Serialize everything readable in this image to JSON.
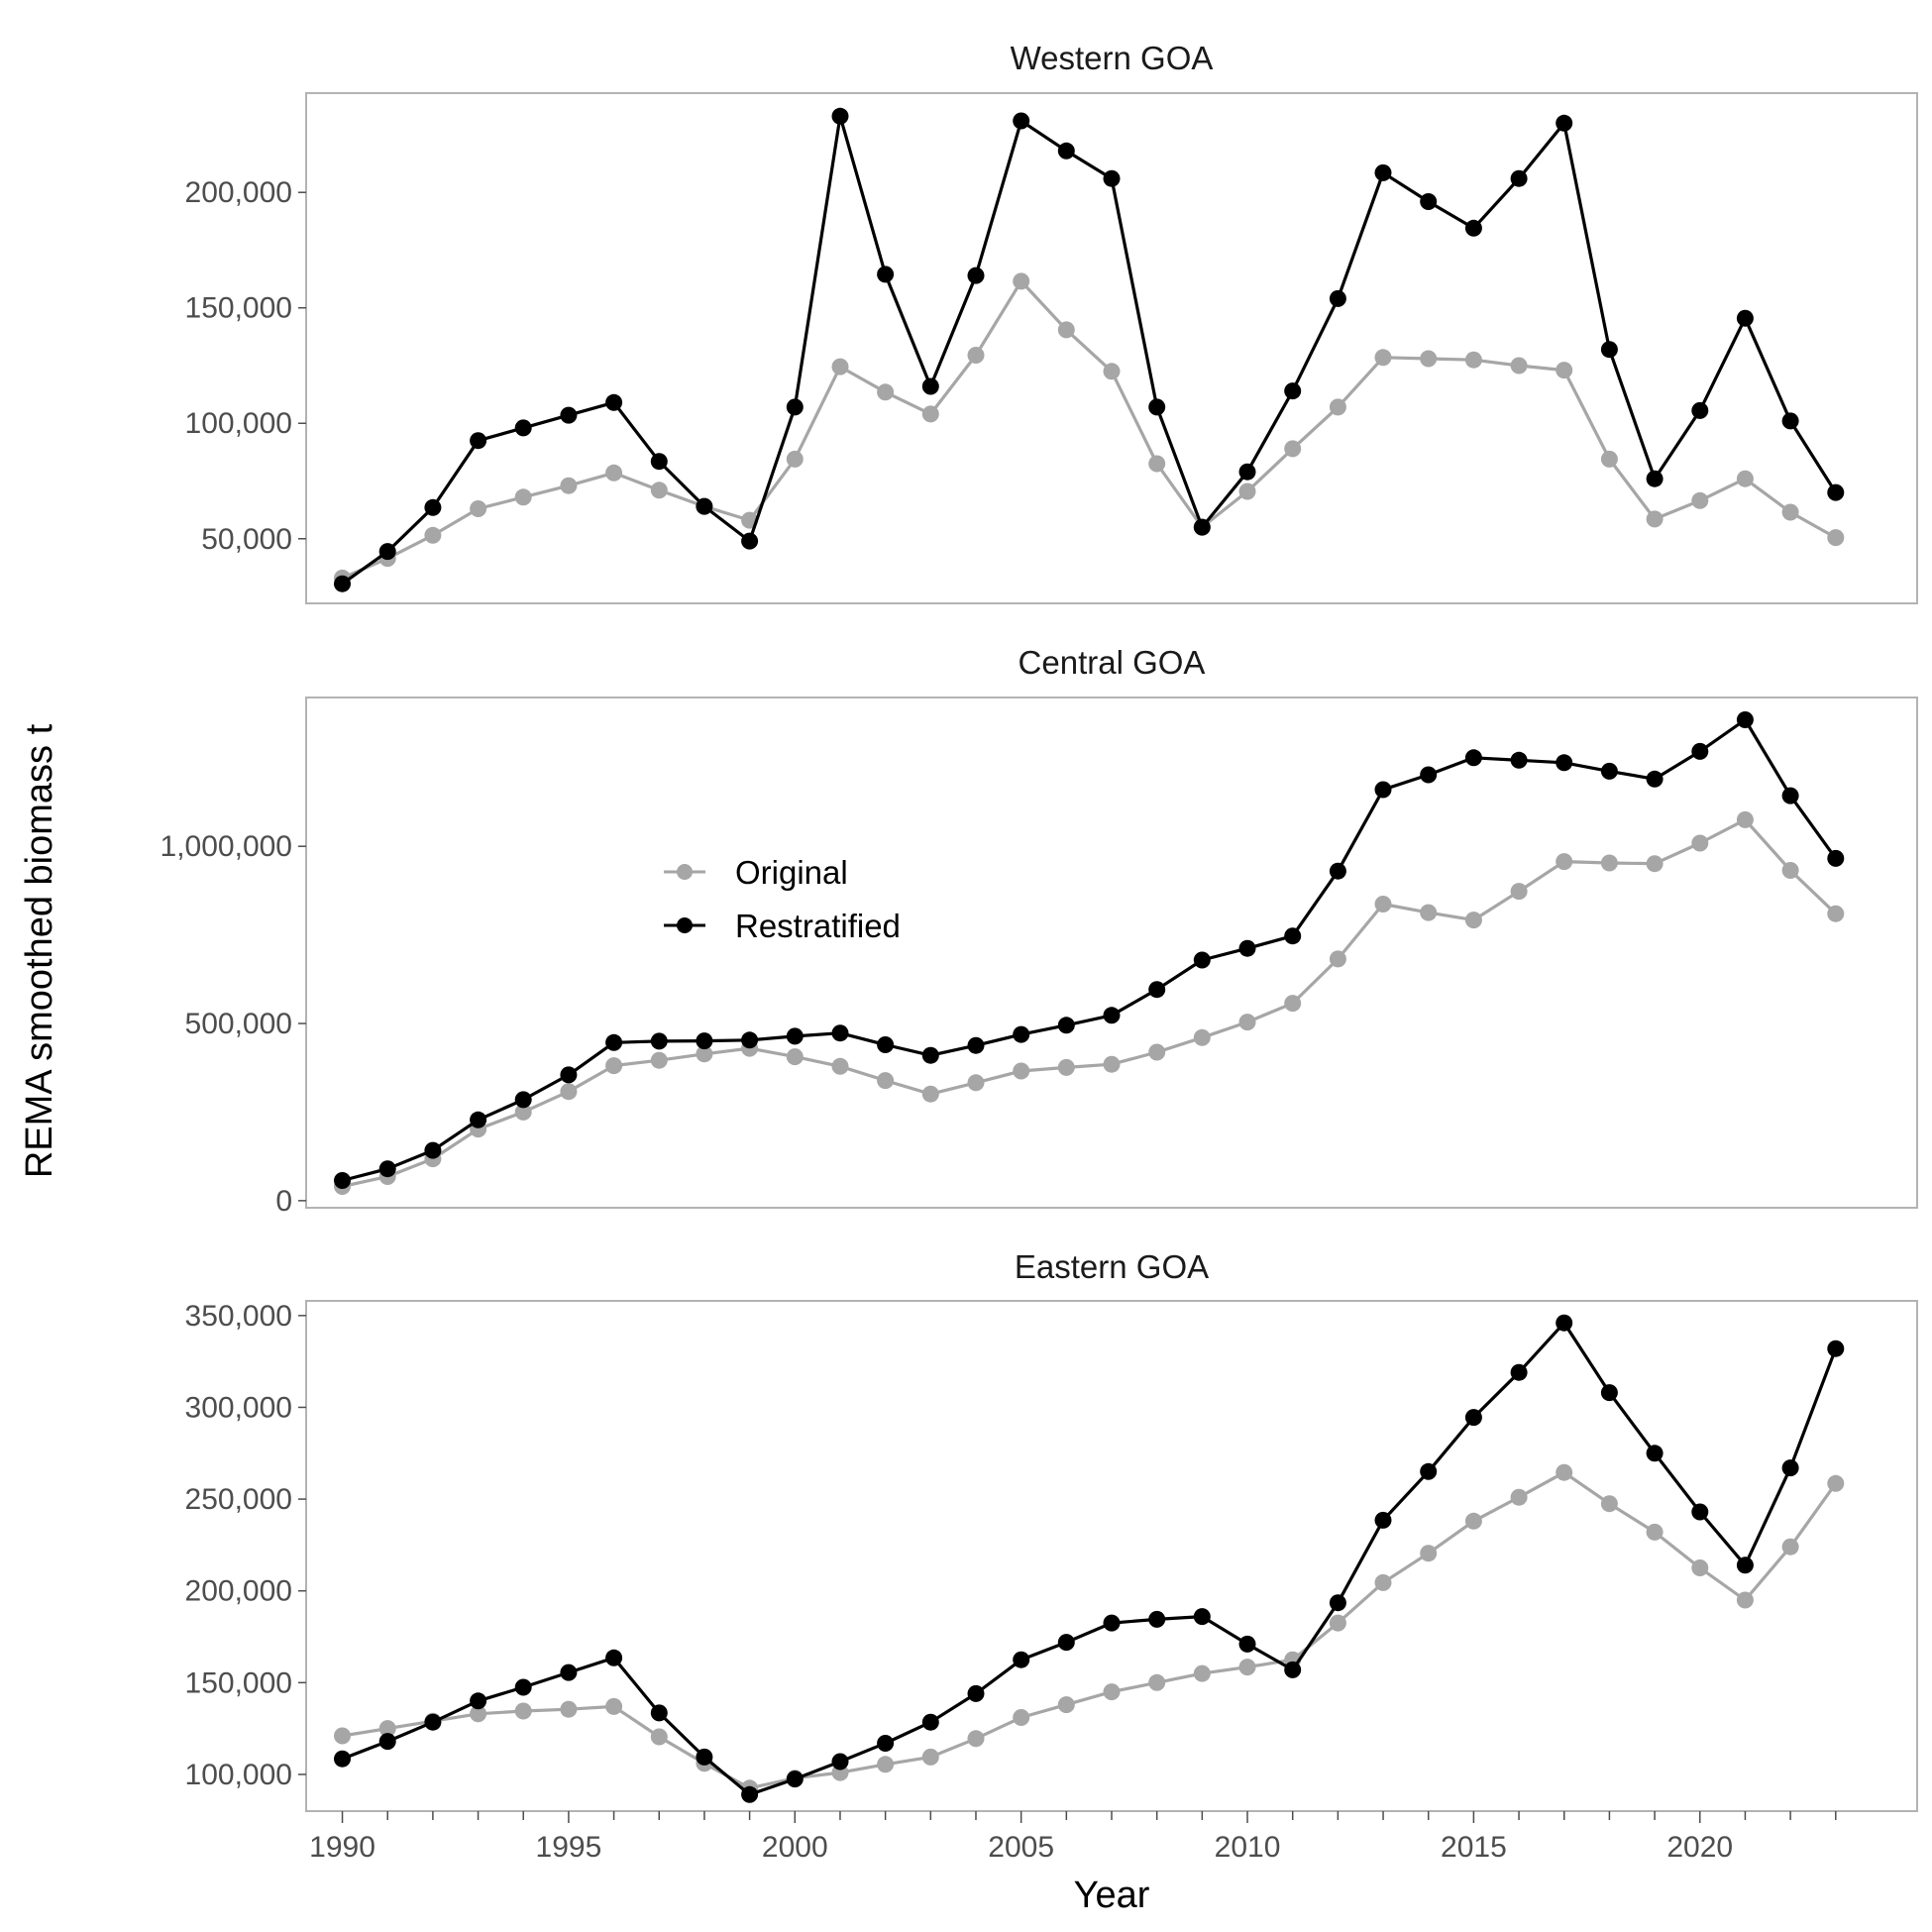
{
  "chart_data": {
    "type": "line",
    "xlabel": "Year",
    "ylabel": "REMA smoothed biomass t",
    "x": [
      1990,
      1991,
      1992,
      1993,
      1994,
      1995,
      1996,
      1997,
      1998,
      1999,
      2000,
      2001,
      2002,
      2003,
      2004,
      2005,
      2006,
      2007,
      2008,
      2009,
      2010,
      2011,
      2012,
      2013,
      2014,
      2015,
      2016,
      2017,
      2018,
      2019,
      2020,
      2021,
      2022,
      2023
    ],
    "xticks": [
      1990,
      1995,
      2000,
      2005,
      2010,
      2015,
      2020
    ],
    "xlim": [
      1989.2,
      2024.8
    ],
    "legend": {
      "placement": "inside-left (middle panel)",
      "entries": [
        "Original",
        "Restratified"
      ]
    },
    "colors": {
      "Original": "#a6a6a6",
      "Restratified": "#000000"
    },
    "grid": false,
    "panels": [
      {
        "title": "Western GOA",
        "ylim": [
          22000,
          243000
        ],
        "yticks": [
          50000,
          100000,
          150000,
          200000
        ],
        "ytick_labels": [
          "50,000",
          "100,000",
          "150,000",
          "200,000"
        ],
        "series": [
          {
            "name": "Original",
            "values": [
              33000,
              41500,
              51500,
              63000,
              68000,
              73000,
              78500,
              71000,
              64000,
              58000,
              84500,
              124500,
              113500,
              104000,
              129500,
              161500,
              140500,
              122500,
              82500,
              55000,
              70500,
              89000,
              107000,
              128500,
              128000,
              127500,
              125000,
              123000,
              84500,
              58500,
              66500,
              76000,
              61500,
              50500
            ]
          },
          {
            "name": "Restratified",
            "values": [
              30500,
              44500,
              63500,
              92500,
              98000,
              103500,
              109000,
              83500,
              64000,
              49000,
              107000,
              233000,
              164500,
              116000,
              164000,
              231000,
              218000,
              206000,
              107000,
              55000,
              79000,
              114000,
              154000,
              208500,
              196000,
              184500,
              206000,
              230000,
              132000,
              76000,
              105500,
              145500,
              101000,
              70000
            ]
          }
        ]
      },
      {
        "title": "Central GOA",
        "ylim": [
          -20000,
          1420000
        ],
        "yticks": [
          0,
          500000,
          1000000
        ],
        "ytick_labels": [
          "0",
          "500,000",
          "1,000,000"
        ],
        "series": [
          {
            "name": "Original",
            "values": [
              40000,
              68000,
              118000,
              202000,
              250000,
              308000,
              381000,
              396000,
              414000,
              430000,
              406000,
              379000,
              339000,
              301000,
              333000,
              366000,
              376000,
              385000,
              419000,
              460000,
              504000,
              557000,
              682000,
              837000,
              813000,
              792000,
              873000,
              957000,
              953000,
              951000,
              1009000,
              1075000,
              932000,
              810000
            ]
          },
          {
            "name": "Restratified",
            "values": [
              57000,
              90000,
              142000,
              228000,
              285000,
              355000,
              446000,
              450000,
              451000,
              453000,
              464000,
              473000,
              440000,
              410000,
              438000,
              469000,
              495000,
              523000,
              596000,
              679000,
              712000,
              747000,
              930000,
              1160000,
              1202000,
              1250000,
              1243000,
              1236000,
              1212000,
              1190000,
              1268000,
              1357000,
              1143000,
              966000
            ]
          }
        ]
      },
      {
        "title": "Eastern GOA",
        "ylim": [
          80000,
          358000
        ],
        "yticks": [
          100000,
          150000,
          200000,
          250000,
          300000,
          350000
        ],
        "ytick_labels": [
          "100,000",
          "150,000",
          "200,000",
          "250,000",
          "300,000",
          "350,000"
        ],
        "series": [
          {
            "name": "Original",
            "values": [
              121000,
              125000,
              129000,
              133000,
              134500,
              135500,
              137000,
              120500,
              106000,
              92500,
              98000,
              101000,
              105500,
              109500,
              119500,
              131000,
              138000,
              145000,
              150000,
              155000,
              158500,
              162500,
              182500,
              204500,
              220500,
              238000,
              251000,
              264500,
              247500,
              232000,
              212500,
              195000,
              224000,
              258500
            ]
          },
          {
            "name": "Restratified",
            "values": [
              108500,
              118000,
              128500,
              140000,
              147500,
              155500,
              163500,
              133500,
              109500,
              89000,
              97500,
              107000,
              117000,
              128500,
              144000,
              162500,
              172000,
              182500,
              184500,
              186000,
              171000,
              157000,
              193500,
              238500,
              265000,
              294500,
              319000,
              346000,
              308000,
              275000,
              243000,
              214000,
              267000,
              332000
            ]
          }
        ]
      }
    ]
  }
}
